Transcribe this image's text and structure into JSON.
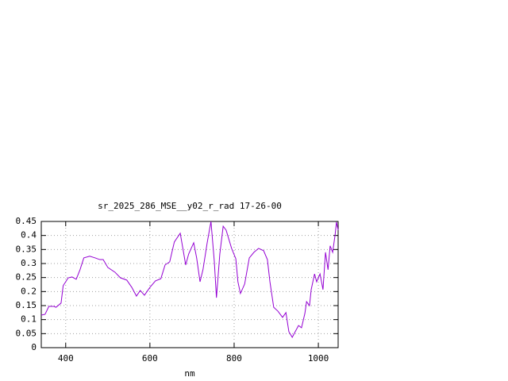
{
  "chart_data": {
    "type": "line",
    "title": "sr_2025_286_MSE__y02_r_rad 17-26-00",
    "x_label": "nm",
    "xlim": [
      342,
      1047
    ],
    "xticks": [
      400,
      600,
      800,
      1000
    ],
    "ylim": [
      0,
      0.45
    ],
    "yticks": [
      0,
      0.05,
      0.1,
      0.15,
      0.2,
      0.25,
      0.3,
      0.35,
      0.4,
      0.45
    ],
    "grid": true,
    "series": [
      {
        "color": "#9400d3",
        "x": [
          342,
          351,
          360,
          372,
          377,
          389,
          394,
          406,
          415,
          425,
          434,
          443,
          457,
          470,
          481,
          489,
          500,
          517,
          530,
          545,
          557,
          568,
          577,
          587,
          600,
          613,
          626,
          636,
          647,
          658,
          672,
          685,
          692,
          704,
          711,
          719,
          726,
          736,
          745,
          753,
          758,
          766,
          774,
          781,
          794,
          804,
          809,
          815,
          825,
          836,
          847,
          858,
          870,
          879,
          885,
          894,
          904,
          915,
          923,
          930,
          938,
          945,
          953,
          960,
          968,
          972,
          979,
          983,
          991,
          996,
          1004,
          1011,
          1017,
          1023,
          1028,
          1034,
          1040,
          1043,
          1047
        ],
        "values": [
          0.116,
          0.119,
          0.147,
          0.147,
          0.144,
          0.159,
          0.221,
          0.249,
          0.252,
          0.244,
          0.278,
          0.32,
          0.326,
          0.32,
          0.314,
          0.314,
          0.286,
          0.269,
          0.249,
          0.241,
          0.215,
          0.184,
          0.204,
          0.187,
          0.215,
          0.238,
          0.246,
          0.295,
          0.306,
          0.377,
          0.408,
          0.295,
          0.334,
          0.374,
          0.32,
          0.235,
          0.278,
          0.374,
          0.45,
          0.306,
          0.178,
          0.334,
          0.433,
          0.419,
          0.354,
          0.317,
          0.235,
          0.193,
          0.227,
          0.32,
          0.34,
          0.354,
          0.346,
          0.314,
          0.235,
          0.144,
          0.13,
          0.108,
          0.125,
          0.057,
          0.037,
          0.057,
          0.079,
          0.071,
          0.122,
          0.164,
          0.15,
          0.207,
          0.263,
          0.235,
          0.263,
          0.207,
          0.34,
          0.278,
          0.363,
          0.34,
          0.405,
          0.448,
          0.419
        ]
      }
    ]
  }
}
